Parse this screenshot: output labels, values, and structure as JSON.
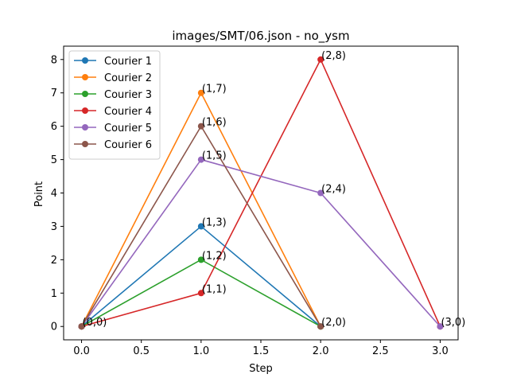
{
  "chart_data": {
    "type": "line",
    "title": "images/SMT/06.json - no_ysm",
    "xlabel": "Step",
    "ylabel": "Point",
    "xlim": [
      -0.15,
      3.15
    ],
    "ylim": [
      -0.4,
      8.4
    ],
    "x_ticks": [
      0.0,
      0.5,
      1.0,
      1.5,
      2.0,
      2.5,
      3.0
    ],
    "x_tick_labels": [
      "0.0",
      "0.5",
      "1.0",
      "1.5",
      "2.0",
      "2.5",
      "3.0"
    ],
    "y_ticks": [
      0,
      1,
      2,
      3,
      4,
      5,
      6,
      7,
      8
    ],
    "y_tick_labels": [
      "0",
      "1",
      "2",
      "3",
      "4",
      "5",
      "6",
      "7",
      "8"
    ],
    "grid": false,
    "legend_position": "top-left",
    "series": [
      {
        "name": "Courier 1",
        "color": "#1f77b4",
        "points": [
          [
            0,
            0
          ],
          [
            1,
            3
          ],
          [
            2,
            0
          ]
        ]
      },
      {
        "name": "Courier 2",
        "color": "#ff7f0e",
        "points": [
          [
            0,
            0
          ],
          [
            1,
            7
          ],
          [
            2,
            0
          ]
        ]
      },
      {
        "name": "Courier 3",
        "color": "#2ca02c",
        "points": [
          [
            0,
            0
          ],
          [
            1,
            2
          ],
          [
            2,
            0
          ]
        ]
      },
      {
        "name": "Courier 4",
        "color": "#d62728",
        "points": [
          [
            0,
            0
          ],
          [
            1,
            1
          ],
          [
            2,
            8
          ],
          [
            3,
            0
          ]
        ]
      },
      {
        "name": "Courier 5",
        "color": "#9467bd",
        "points": [
          [
            0,
            0
          ],
          [
            1,
            5
          ],
          [
            2,
            4
          ],
          [
            3,
            0
          ]
        ]
      },
      {
        "name": "Courier 6",
        "color": "#8c564b",
        "points": [
          [
            0,
            0
          ],
          [
            1,
            6
          ],
          [
            2,
            0
          ]
        ]
      }
    ],
    "point_labels": [
      {
        "text": "(0,0)",
        "x": 0,
        "y": 0
      },
      {
        "text": "(1,7)",
        "x": 1,
        "y": 7
      },
      {
        "text": "(1,6)",
        "x": 1,
        "y": 6
      },
      {
        "text": "(1,5)",
        "x": 1,
        "y": 5
      },
      {
        "text": "(1,3)",
        "x": 1,
        "y": 3
      },
      {
        "text": "(1,2)",
        "x": 1,
        "y": 2
      },
      {
        "text": "(1,1)",
        "x": 1,
        "y": 1
      },
      {
        "text": "(2,8)",
        "x": 2,
        "y": 8
      },
      {
        "text": "(2,4)",
        "x": 2,
        "y": 4
      },
      {
        "text": "(2,0)",
        "x": 2,
        "y": 0
      },
      {
        "text": "(3,0)",
        "x": 3,
        "y": 0
      }
    ]
  }
}
